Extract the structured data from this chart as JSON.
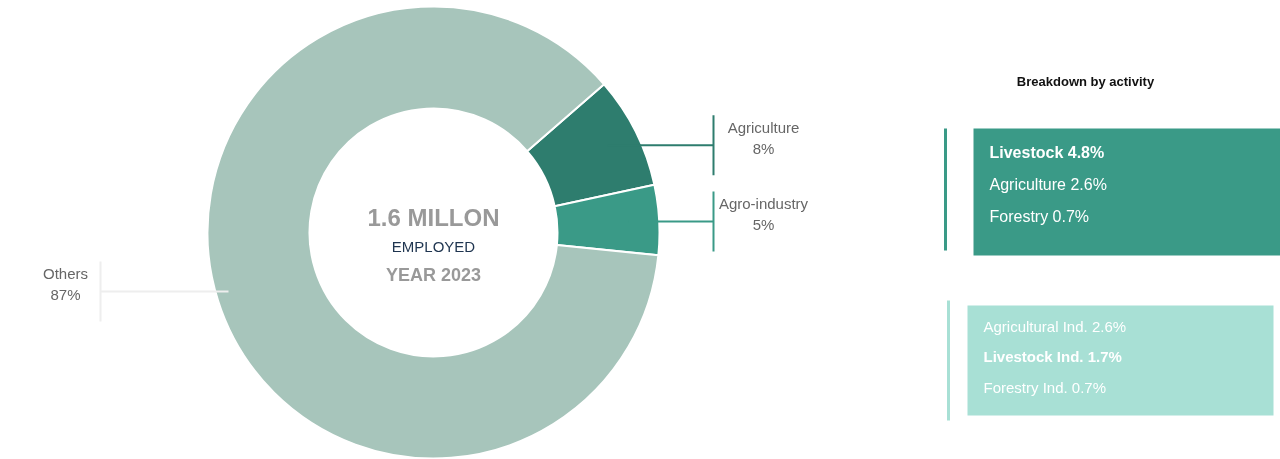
{
  "chart_data": {
    "type": "donut",
    "categories": [
      "Agriculture",
      "Agro-industry",
      "Others"
    ],
    "values": [
      8,
      5,
      87
    ],
    "colors": [
      "#2e7d6e",
      "#3a9a87",
      "#a7c5bb"
    ],
    "value_labels": [
      "8%",
      "5%",
      "87%"
    ],
    "annotations": [
      "1.6 MILLON",
      "EMPLOYED",
      "YEAR 2023",
      "Breakdown by activity",
      "Livestock   4.8%",
      "Agriculture  2.6%",
      "Forestry       0.7%",
      "Agricultural Ind. 2.6%",
      "Livestock Ind.  1.7%",
      "Forestry Ind.       0.7%"
    ]
  }
}
